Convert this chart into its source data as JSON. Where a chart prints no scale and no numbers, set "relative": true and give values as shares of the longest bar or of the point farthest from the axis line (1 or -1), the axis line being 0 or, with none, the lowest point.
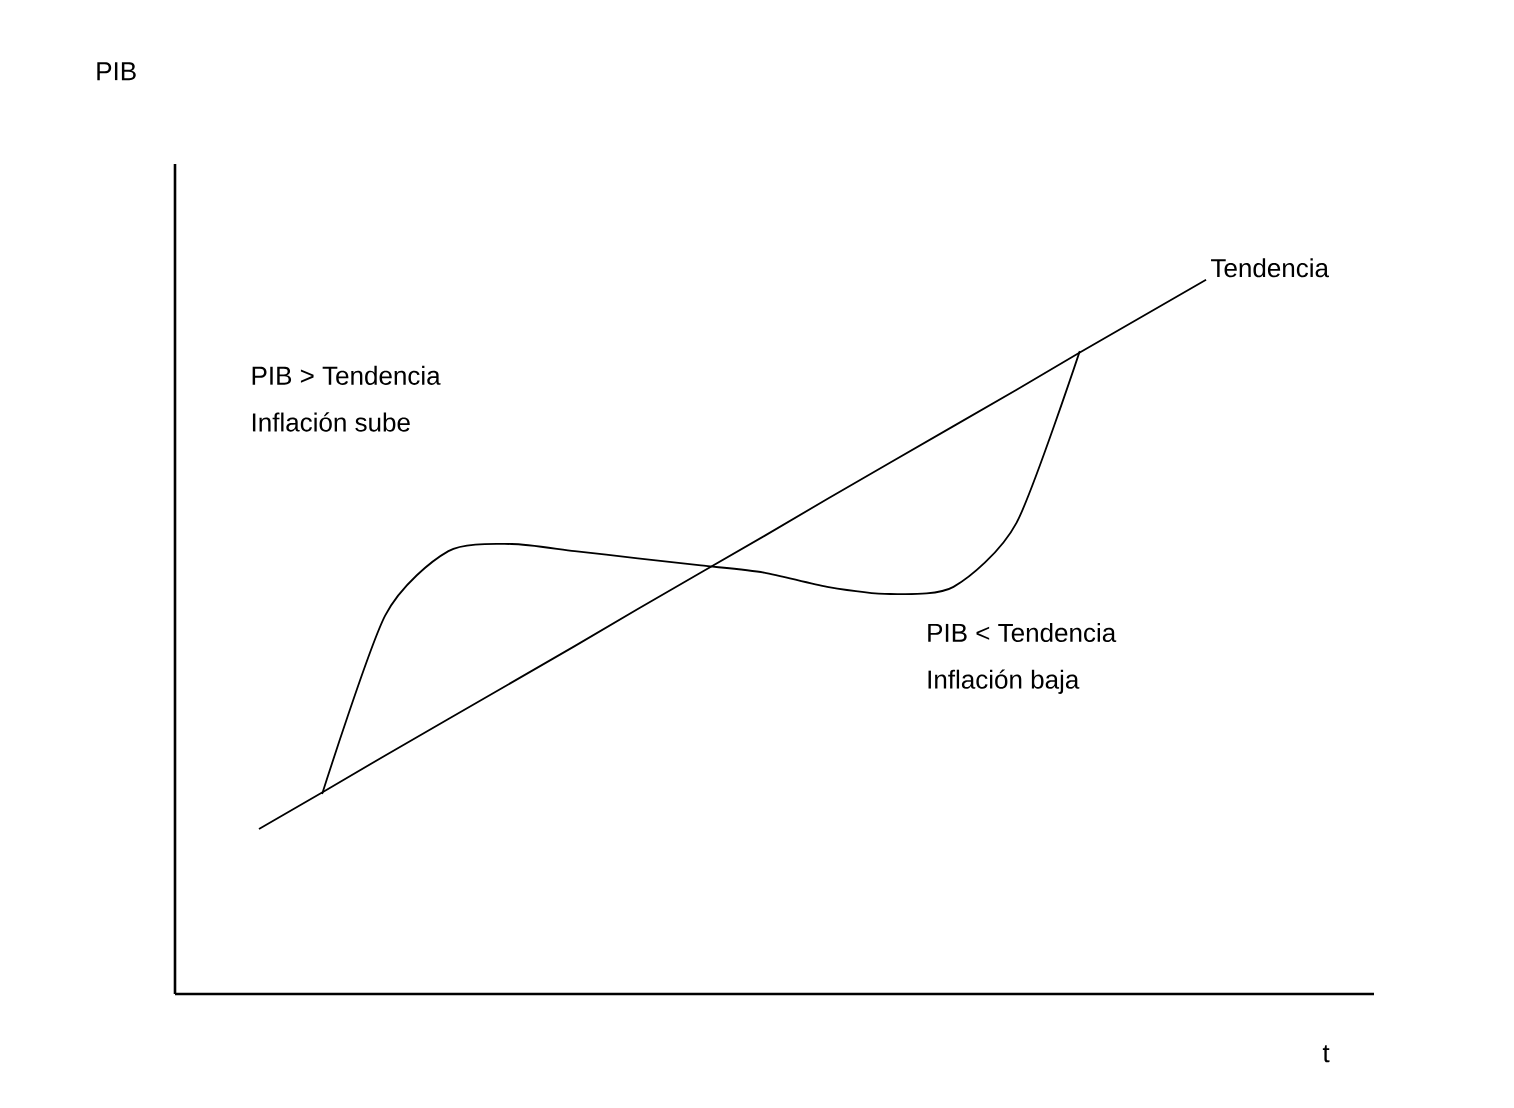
{
  "chart_data": {
    "type": "line",
    "relative": true,
    "xlabel": "t",
    "categories": [
      null,
      null,
      null,
      null,
      null,
      null,
      null,
      null,
      null,
      null,
      null,
      null,
      null,
      null,
      null,
      null
    ],
    "series": [
      {
        "name": "Tendencia",
        "color": "#000000",
        "values": [
          0.231,
          0.282,
          0.334,
          0.385,
          0.436,
          0.487,
          0.539,
          0.59,
          0.641,
          0.693,
          0.744,
          0.795,
          0.846,
          0.898,
          0.949,
          1.0
        ]
      },
      {
        "color": "#000000",
        "values": [
          null,
          0.28,
          0.53,
          0.62,
          0.63,
          0.62,
          0.61,
          0.6,
          0.59,
          0.57,
          0.56,
          0.57,
          0.66,
          0.9,
          null,
          null
        ]
      }
    ],
    "annotations": [
      "PIB",
      "PIB > Tendencia",
      "Inflación sube",
      "PIB < Tendencia",
      "Inflación baja"
    ]
  }
}
